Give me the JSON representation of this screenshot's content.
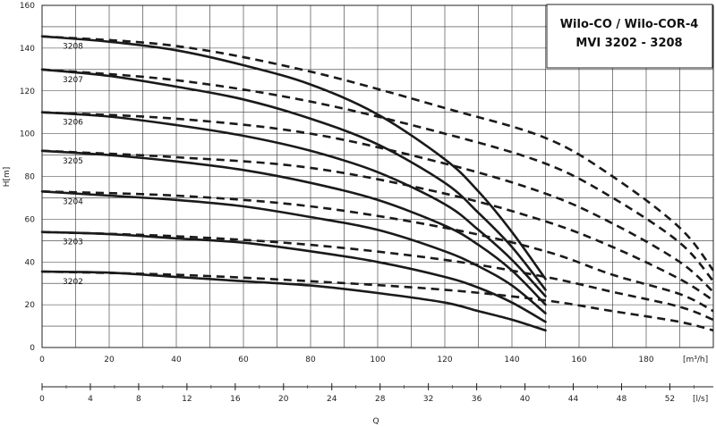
{
  "chart_data": {
    "type": "line",
    "title_lines": [
      "Wilo-CO / Wilo-COR-4",
      "MVI 3202 - 3208"
    ],
    "ylabel": "H[m]",
    "xlabel_bottom": "Q",
    "x_unit": "[m³/h]",
    "x2_unit": "[l/s]",
    "ylim": [
      0,
      160
    ],
    "xlim": [
      0,
      200
    ],
    "x2lim": [
      0,
      55.6
    ],
    "y_ticks": [
      "0",
      "20",
      "40",
      "60",
      "80",
      "100",
      "120",
      "140",
      "160"
    ],
    "x_ticks": [
      "0",
      "20",
      "40",
      "60",
      "80",
      "100",
      "120",
      "140",
      "160",
      "180"
    ],
    "x2_ticks": [
      "0",
      "4",
      "8",
      "12",
      "16",
      "20",
      "24",
      "28",
      "32",
      "36",
      "40",
      "44",
      "48",
      "52"
    ],
    "grid": true,
    "series": [
      {
        "name": "3208",
        "solid": [
          [
            0,
            145.5
          ],
          [
            20,
            143
          ],
          [
            40,
            139
          ],
          [
            60,
            132
          ],
          [
            80,
            123
          ],
          [
            100,
            109
          ],
          [
            120,
            88
          ],
          [
            130,
            73
          ],
          [
            140,
            54
          ],
          [
            150,
            32
          ]
        ],
        "dashed": [
          [
            0,
            145.5
          ],
          [
            40,
            141
          ],
          [
            80,
            129
          ],
          [
            120,
            112
          ],
          [
            150,
            98
          ],
          [
            170,
            80
          ],
          [
            190,
            56
          ],
          [
            200,
            36
          ]
        ]
      },
      {
        "name": "3207",
        "solid": [
          [
            0,
            130
          ],
          [
            20,
            127
          ],
          [
            40,
            122
          ],
          [
            60,
            116
          ],
          [
            80,
            107
          ],
          [
            100,
            95
          ],
          [
            120,
            77
          ],
          [
            130,
            63
          ],
          [
            140,
            47
          ],
          [
            150,
            27
          ]
        ],
        "dashed": [
          [
            0,
            130
          ],
          [
            40,
            125
          ],
          [
            80,
            115
          ],
          [
            120,
            100
          ],
          [
            150,
            86
          ],
          [
            170,
            70
          ],
          [
            190,
            49
          ],
          [
            200,
            31
          ]
        ]
      },
      {
        "name": "3206",
        "solid": [
          [
            0,
            110
          ],
          [
            20,
            108
          ],
          [
            40,
            104
          ],
          [
            60,
            99
          ],
          [
            80,
            92
          ],
          [
            100,
            82
          ],
          [
            120,
            67
          ],
          [
            130,
            55
          ],
          [
            140,
            41
          ],
          [
            150,
            24
          ]
        ],
        "dashed": [
          [
            0,
            110
          ],
          [
            40,
            107
          ],
          [
            80,
            100
          ],
          [
            120,
            86
          ],
          [
            150,
            72
          ],
          [
            170,
            58
          ],
          [
            190,
            40
          ],
          [
            200,
            26
          ]
        ]
      },
      {
        "name": "3205",
        "solid": [
          [
            0,
            92
          ],
          [
            20,
            90
          ],
          [
            40,
            87
          ],
          [
            60,
            83
          ],
          [
            80,
            77
          ],
          [
            100,
            69
          ],
          [
            120,
            57
          ],
          [
            130,
            48
          ],
          [
            140,
            36
          ],
          [
            150,
            20
          ]
        ],
        "dashed": [
          [
            0,
            92
          ],
          [
            40,
            89
          ],
          [
            80,
            84
          ],
          [
            120,
            72
          ],
          [
            150,
            59
          ],
          [
            170,
            47
          ],
          [
            190,
            32
          ],
          [
            200,
            22
          ]
        ]
      },
      {
        "name": "3204",
        "solid": [
          [
            0,
            73
          ],
          [
            20,
            71
          ],
          [
            40,
            69
          ],
          [
            60,
            66
          ],
          [
            80,
            61
          ],
          [
            100,
            55
          ],
          [
            120,
            45
          ],
          [
            130,
            38
          ],
          [
            140,
            29
          ],
          [
            150,
            16
          ]
        ],
        "dashed": [
          [
            0,
            73
          ],
          [
            40,
            71
          ],
          [
            80,
            66
          ],
          [
            120,
            56
          ],
          [
            150,
            45
          ],
          [
            170,
            34
          ],
          [
            190,
            25
          ],
          [
            200,
            17
          ]
        ]
      },
      {
        "name": "3203",
        "solid": [
          [
            0,
            54
          ],
          [
            20,
            53
          ],
          [
            40,
            51
          ],
          [
            60,
            49
          ],
          [
            80,
            45
          ],
          [
            100,
            40
          ],
          [
            120,
            33
          ],
          [
            130,
            28
          ],
          [
            140,
            21
          ],
          [
            150,
            12
          ]
        ],
        "dashed": [
          [
            0,
            54
          ],
          [
            40,
            52
          ],
          [
            80,
            48
          ],
          [
            120,
            41
          ],
          [
            150,
            33
          ],
          [
            170,
            26
          ],
          [
            190,
            19
          ],
          [
            200,
            13
          ]
        ]
      },
      {
        "name": "3202",
        "solid": [
          [
            0,
            35.5
          ],
          [
            20,
            35
          ],
          [
            40,
            33
          ],
          [
            60,
            31
          ],
          [
            80,
            29
          ],
          [
            100,
            25.5
          ],
          [
            120,
            21
          ],
          [
            130,
            17
          ],
          [
            140,
            13
          ],
          [
            150,
            8
          ]
        ],
        "dashed": [
          [
            0,
            35.5
          ],
          [
            40,
            34
          ],
          [
            80,
            31
          ],
          [
            120,
            27
          ],
          [
            150,
            22
          ],
          [
            170,
            17
          ],
          [
            190,
            12
          ],
          [
            200,
            8
          ]
        ]
      }
    ]
  }
}
